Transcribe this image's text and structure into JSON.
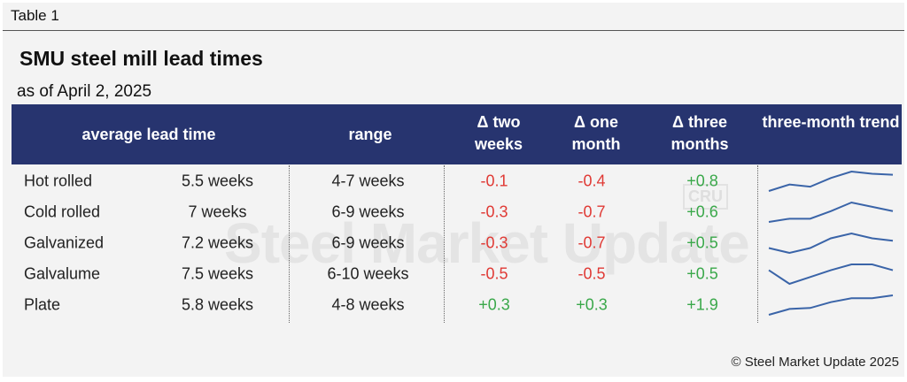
{
  "label": "Table 1",
  "header": {
    "title": "SMU steel mill lead times",
    "subtitle": "as of April 2, 2025"
  },
  "watermark": {
    "brand": "Steel Market Update",
    "logo": "CRU"
  },
  "table": {
    "columns": [
      "average lead time",
      "range",
      "Δ two weeks",
      "Δ one month",
      "Δ three months",
      "three-month trend"
    ],
    "rows": [
      {
        "product": "Hot rolled",
        "lead_time": "5.5 weeks",
        "range": "4-7 weeks",
        "two_weeks": "-0.1",
        "one_month": "-0.4",
        "three_months": "+0.8",
        "trend": [
          1,
          4,
          3,
          7,
          10,
          9,
          8.5
        ]
      },
      {
        "product": "Cold rolled",
        "lead_time": "7 weeks",
        "range": "6-9 weeks",
        "two_weeks": "-0.3",
        "one_month": "-0.7",
        "three_months": "+0.6",
        "trend": [
          0,
          1.5,
          1.5,
          5,
          9,
          7,
          5
        ]
      },
      {
        "product": "Galvanized",
        "lead_time": "7.2 weeks",
        "range": "6-9 weeks",
        "two_weeks": "-0.3",
        "one_month": "-0.7",
        "three_months": "+0.5",
        "trend": [
          5,
          3,
          5,
          9,
          11,
          9,
          8
        ]
      },
      {
        "product": "Galvalume",
        "lead_time": "7.5 weeks",
        "range": "6-10 weeks",
        "two_weeks": "-0.5",
        "one_month": "-0.5",
        "three_months": "+0.5",
        "trend": [
          7,
          0,
          3.5,
          7,
          10,
          10,
          7
        ]
      },
      {
        "product": "Plate",
        "lead_time": "5.8 weeks",
        "range": "4-8 weeks",
        "two_weeks": "+0.3",
        "one_month": "+0.3",
        "three_months": "+1.9",
        "trend": [
          0,
          3,
          3.5,
          6.5,
          8.5,
          8.5,
          10
        ]
      }
    ]
  },
  "footer": "© Steel Market Update 2025"
}
